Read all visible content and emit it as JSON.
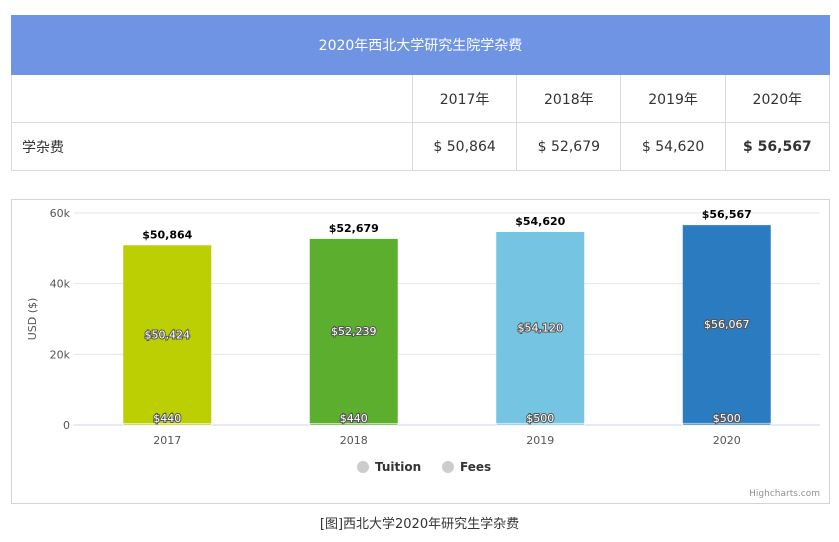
{
  "table": {
    "title": "2020年西北大学研究生院学杂费",
    "years": [
      "2017年",
      "2018年",
      "2019年",
      "2020年"
    ],
    "row_label": "学杂费",
    "values": [
      "$ 50,864",
      "$ 52,679",
      "$ 54,620",
      "$ 56,567"
    ]
  },
  "chart_data": {
    "type": "bar",
    "stacked": true,
    "categories": [
      "2017",
      "2018",
      "2019",
      "2020"
    ],
    "series": [
      {
        "name": "Tuition",
        "values": [
          50424,
          52239,
          54120,
          56067
        ],
        "value_labels": [
          "$50,424",
          "$52,239",
          "$54,120",
          "$56,067"
        ]
      },
      {
        "name": "Fees",
        "values": [
          440,
          440,
          500,
          500
        ],
        "value_labels": [
          "$440",
          "$440",
          "$500",
          "$500"
        ]
      }
    ],
    "totals": [
      50864,
      52679,
      54620,
      56567
    ],
    "total_labels": [
      "$50,864",
      "$52,679",
      "$54,620",
      "$56,567"
    ],
    "bar_colors": [
      "#bccf03",
      "#5cae2f",
      "#74c4e2",
      "#2a7bbf"
    ],
    "ylabel": "USD ($)",
    "ylim": [
      0,
      60000
    ],
    "yticks": [
      0,
      20000,
      40000,
      60000
    ],
    "ytick_labels": [
      "0",
      "20k",
      "40k",
      "60k"
    ],
    "grid": true,
    "legend_position": "bottom-center",
    "legend_marker_color": "#cccccc",
    "credits": "Highcharts.com"
  },
  "caption": "[图]西北大学2020年研究生学杂费"
}
